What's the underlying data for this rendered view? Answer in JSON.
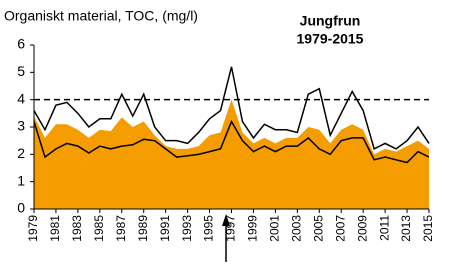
{
  "chart_data": {
    "type": "area",
    "title": "Jungfrun",
    "subtitle": "1979-2015",
    "y_label": "Organiskt material, TOC, (mg/l)",
    "x": [
      1979,
      1980,
      1981,
      1982,
      1983,
      1984,
      1985,
      1986,
      1987,
      1988,
      1989,
      1990,
      1991,
      1992,
      1993,
      1994,
      1995,
      1996,
      1997,
      1998,
      1999,
      2000,
      2001,
      2002,
      2003,
      2004,
      2005,
      2006,
      2007,
      2008,
      2009,
      2010,
      2011,
      2012,
      2013,
      2014,
      2015
    ],
    "series": [
      {
        "color": "#000000",
        "style": "line",
        "values": [
          3.6,
          2.9,
          3.8,
          3.9,
          3.5,
          3.0,
          3.3,
          3.3,
          4.2,
          3.4,
          4.2,
          3.0,
          2.5,
          2.5,
          2.4,
          2.8,
          3.3,
          3.6,
          5.2,
          3.2,
          2.6,
          3.1,
          2.9,
          2.9,
          2.8,
          4.2,
          4.4,
          2.7,
          3.5,
          4.3,
          3.6,
          2.2,
          2.4,
          2.2,
          2.5,
          3.0,
          2.4
        ]
      },
      {
        "color": "#f59c00",
        "style": "area",
        "values": [
          3.4,
          2.6,
          3.1,
          3.1,
          2.9,
          2.6,
          2.9,
          2.85,
          3.35,
          3.0,
          3.2,
          2.7,
          2.3,
          2.2,
          2.2,
          2.3,
          2.7,
          2.8,
          4.0,
          2.8,
          2.4,
          2.6,
          2.4,
          2.6,
          2.6,
          3.0,
          2.9,
          2.4,
          2.9,
          3.1,
          2.9,
          2.0,
          2.2,
          2.1,
          2.3,
          2.5,
          2.2
        ]
      },
      {
        "color": "#000000",
        "style": "line",
        "values": [
          3.2,
          1.9,
          2.2,
          2.4,
          2.3,
          2.05,
          2.3,
          2.2,
          2.3,
          2.35,
          2.55,
          2.5,
          2.2,
          1.9,
          1.95,
          2.0,
          2.1,
          2.2,
          3.2,
          2.5,
          2.1,
          2.3,
          2.1,
          2.3,
          2.3,
          2.6,
          2.2,
          2.0,
          2.5,
          2.6,
          2.6,
          1.8,
          1.9,
          1.8,
          1.7,
          2.1,
          1.9
        ]
      }
    ],
    "xlim": [
      1979,
      2015
    ],
    "xticks": [
      1979,
      1981,
      1983,
      1985,
      1987,
      1989,
      1991,
      1993,
      1995,
      1997,
      1999,
      2001,
      2003,
      2005,
      2007,
      2009,
      2011,
      2013,
      2015
    ],
    "ylim": [
      0,
      6
    ],
    "yticks": [
      0,
      1,
      2,
      3,
      4,
      5,
      6
    ],
    "reference_line": 4,
    "arrow_x": 1996.5
  }
}
